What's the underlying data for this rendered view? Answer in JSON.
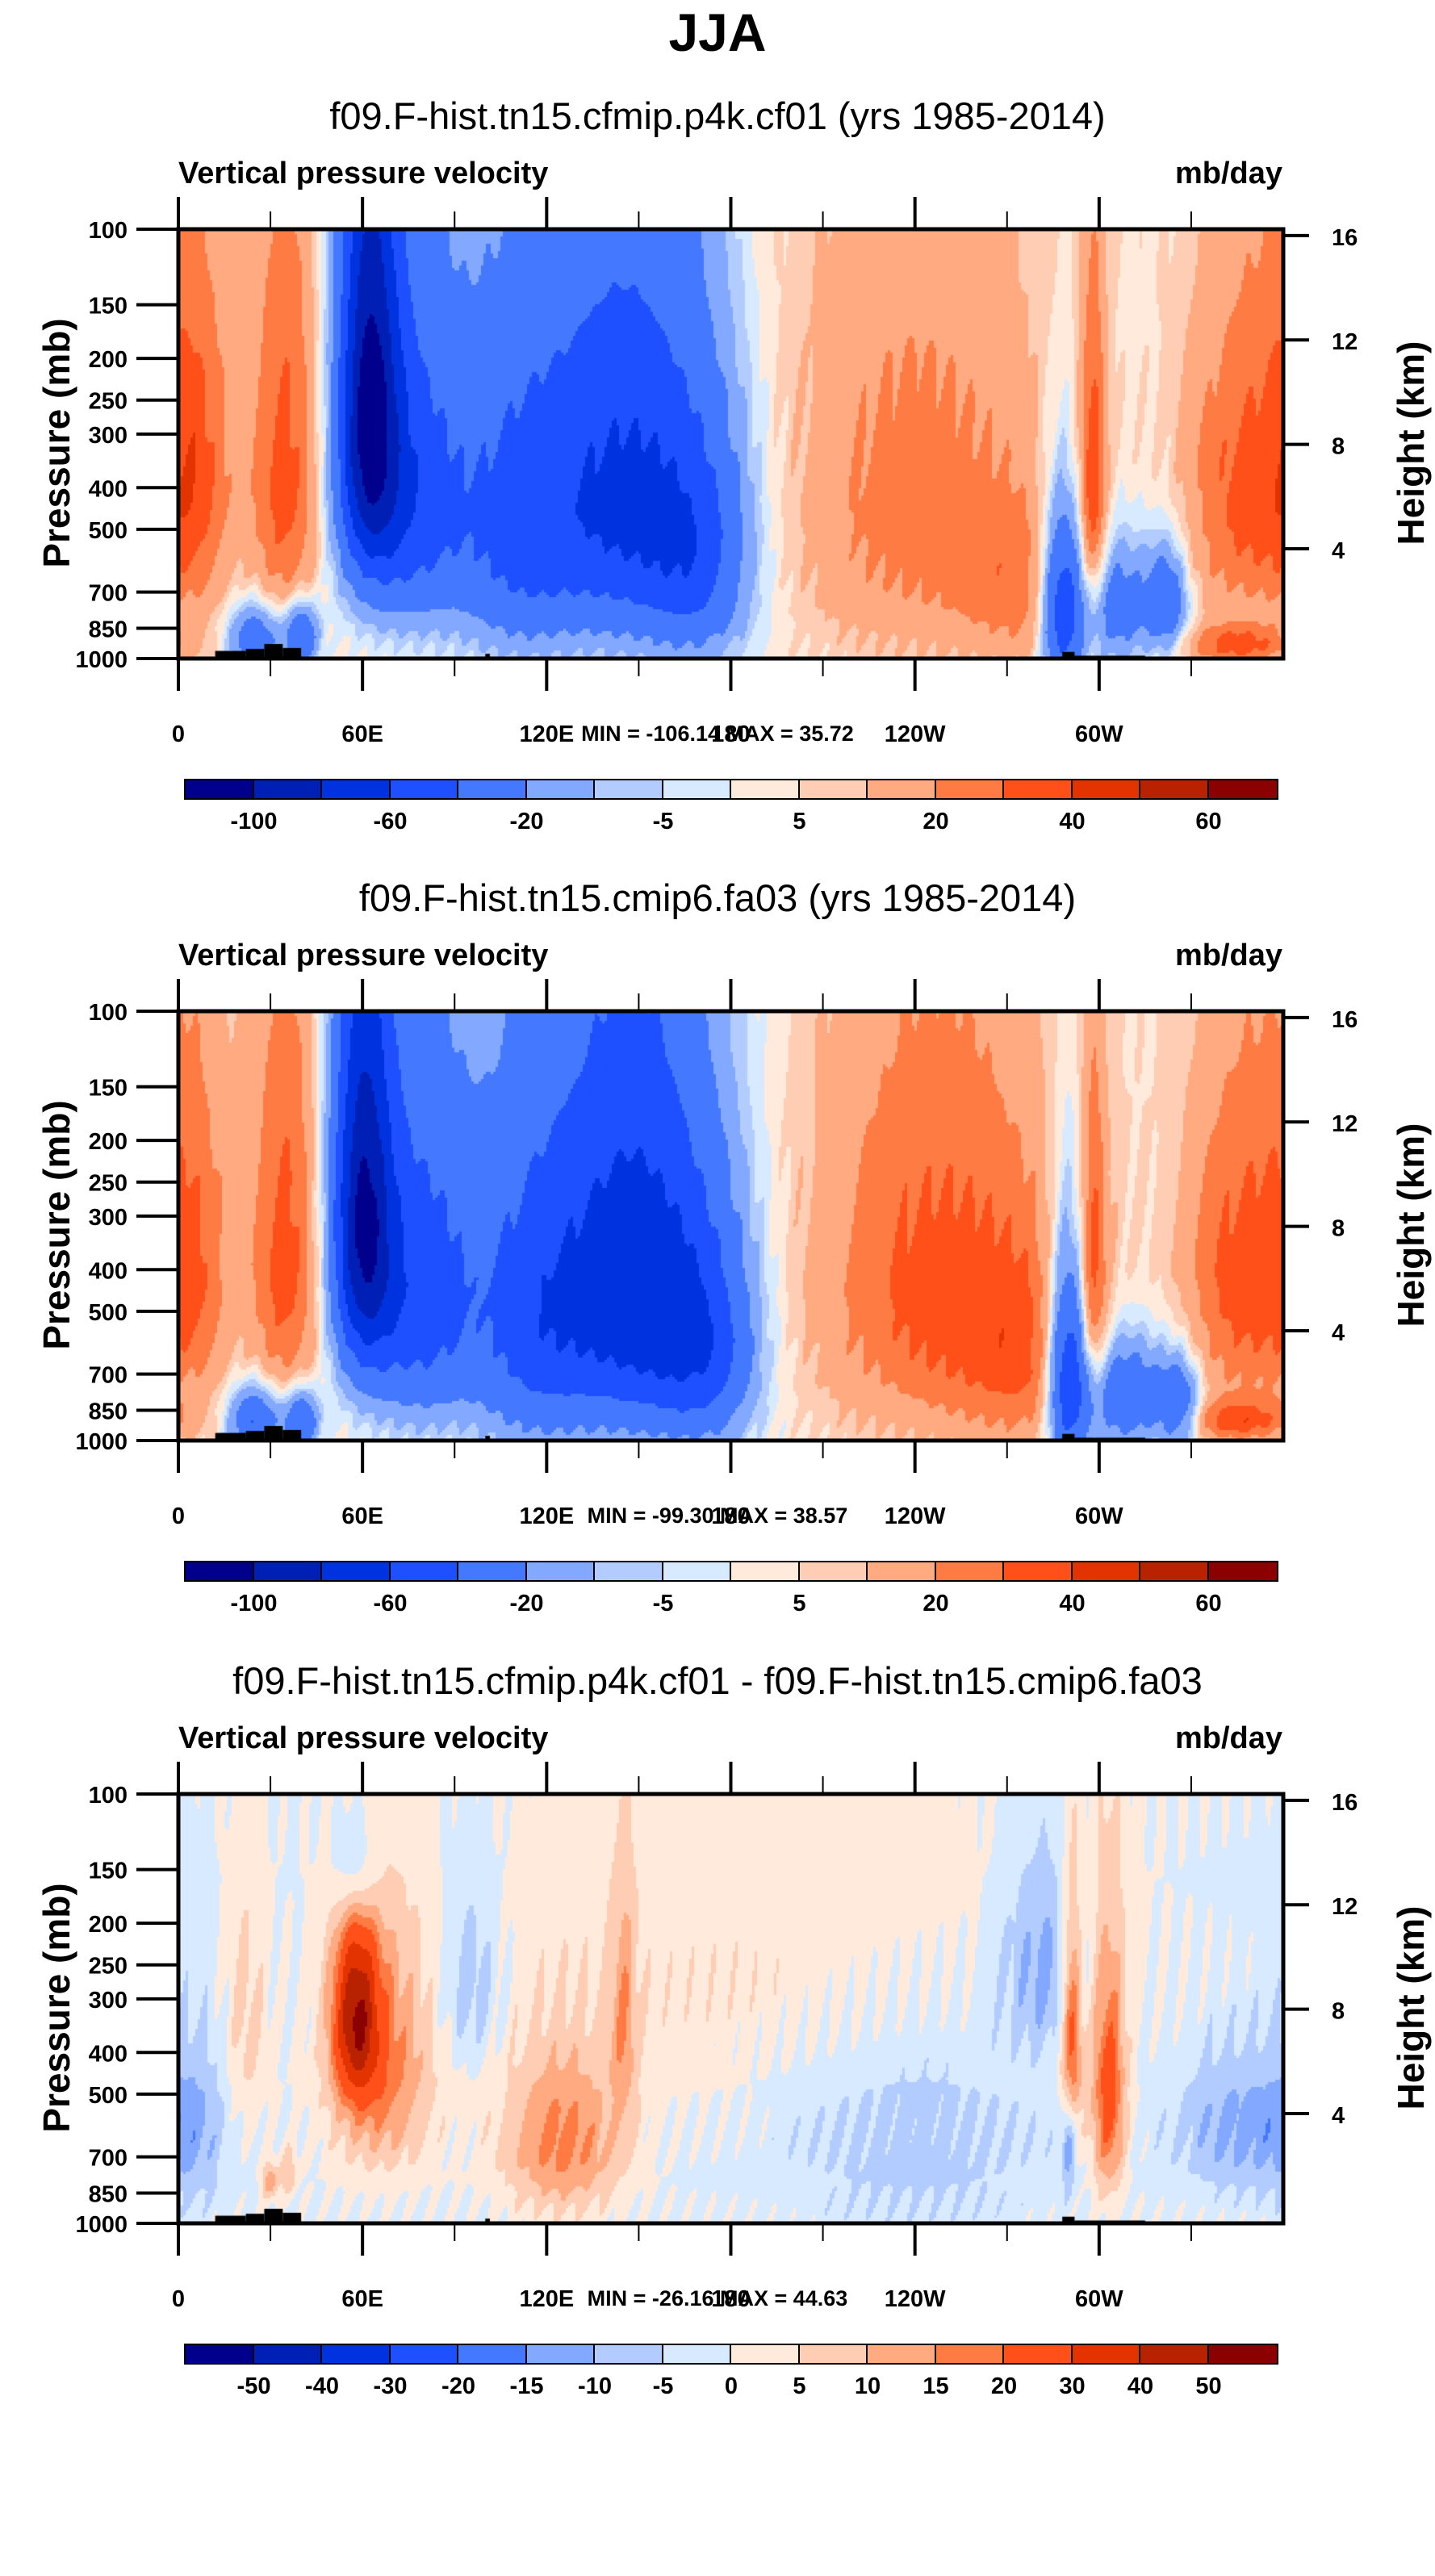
{
  "main_title": "JJA",
  "chart_data": [
    {
      "type": "heatmap",
      "subtype": "filled-contour pressure-longitude cross-section",
      "title": "f09.F-hist.tn15.cfmip.p4k.cf01 (yrs 1985-2014)",
      "left_string": "Vertical pressure velocity",
      "right_string": "mb/day",
      "xlabel": "",
      "ylabel": "Pressure (mb)",
      "y2label": "Height (km)",
      "x_ticks": [
        "0",
        "60E",
        "120E",
        "180",
        "120W",
        "60W"
      ],
      "x_range_deg": [
        0,
        360
      ],
      "y_ticks": [
        "100",
        "150",
        "200",
        "250",
        "300",
        "400",
        "500",
        "700",
        "850",
        "1000"
      ],
      "y_range_mb": [
        100,
        1000
      ],
      "y2_ticks": [
        "16",
        "12",
        "8",
        "4"
      ],
      "minmax_label": "MIN = -106.14  MAX =  35.72",
      "min": -106.14,
      "max": 35.72,
      "colorbar": {
        "levels": [
          -100,
          -80,
          -60,
          -40,
          -20,
          -10,
          -5,
          0,
          5,
          10,
          20,
          30,
          40,
          50,
          60
        ],
        "labels": [
          "-100",
          "-60",
          "-20",
          "-5",
          "5",
          "20",
          "40",
          "60"
        ],
        "label_every": 2,
        "colors": [
          "#00008c",
          "#001fb4",
          "#0033e0",
          "#1e50ff",
          "#4479ff",
          "#82a8ff",
          "#b3ccff",
          "#d8eaff",
          "#ffeadb",
          "#ffcdb3",
          "#ffaa80",
          "#ff7b44",
          "#ff5019",
          "#e33300",
          "#b82200",
          "#8b0000"
        ]
      },
      "features": [
        {
          "lon": 62,
          "p": 260,
          "amp": -90,
          "sx": 7,
          "sy": 220
        },
        {
          "lon": 75,
          "p": 420,
          "amp": -55,
          "sx": 14,
          "sy": 260
        },
        {
          "lon": 145,
          "p": 420,
          "amp": -65,
          "sx": 20,
          "sy": 300
        },
        {
          "lon": 110,
          "p": 500,
          "amp": -40,
          "sx": 14,
          "sy": 300
        },
        {
          "lon": 170,
          "p": 600,
          "amp": -35,
          "sx": 12,
          "sy": 260
        },
        {
          "lon": 5,
          "p": 380,
          "amp": 30,
          "sx": 9,
          "sy": 260
        },
        {
          "lon": 35,
          "p": 380,
          "amp": 32,
          "sx": 8,
          "sy": 300
        },
        {
          "lon": 240,
          "p": 430,
          "amp": 22,
          "sx": 28,
          "sy": 330
        },
        {
          "lon": 345,
          "p": 420,
          "amp": 28,
          "sx": 12,
          "sy": 250
        },
        {
          "lon": 280,
          "p": 700,
          "amp": 18,
          "sx": 18,
          "sy": 220
        },
        {
          "lon": 288,
          "p": 750,
          "amp": -70,
          "sx": 5,
          "sy": 250
        },
        {
          "lon": 305,
          "p": 750,
          "amp": -40,
          "sx": 8,
          "sy": 180
        },
        {
          "lon": 322,
          "p": 740,
          "amp": -40,
          "sx": 5,
          "sy": 150
        },
        {
          "lon": 298,
          "p": 420,
          "amp": 35,
          "sx": 3,
          "sy": 250
        },
        {
          "lon": 345,
          "p": 930,
          "amp": 30,
          "sx": 12,
          "sy": 70
        },
        {
          "lon": 25,
          "p": 900,
          "amp": -40,
          "sx": 6,
          "sy": 120
        },
        {
          "lon": 40,
          "p": 880,
          "amp": -45,
          "sx": 4,
          "sy": 110
        }
      ],
      "base": 3
    },
    {
      "type": "heatmap",
      "subtype": "filled-contour pressure-longitude cross-section",
      "title": "f09.F-hist.tn15.cmip6.fa03 (yrs 1985-2014)",
      "left_string": "Vertical pressure velocity",
      "right_string": "mb/day",
      "xlabel": "",
      "ylabel": "Pressure (mb)",
      "y2label": "Height (km)",
      "x_ticks": [
        "0",
        "60E",
        "120E",
        "180",
        "120W",
        "60W"
      ],
      "x_range_deg": [
        0,
        360
      ],
      "y_ticks": [
        "100",
        "150",
        "200",
        "250",
        "300",
        "400",
        "500",
        "700",
        "850",
        "1000"
      ],
      "y_range_mb": [
        100,
        1000
      ],
      "y2_ticks": [
        "16",
        "12",
        "8",
        "4"
      ],
      "minmax_label": "MIN = -99.30  MAX =  38.57",
      "min": -99.3,
      "max": 38.57,
      "colorbar": {
        "levels": [
          -100,
          -80,
          -60,
          -40,
          -20,
          -10,
          -5,
          0,
          5,
          10,
          20,
          30,
          40,
          50,
          60
        ],
        "labels": [
          "-100",
          "-60",
          "-20",
          "-5",
          "5",
          "20",
          "40",
          "60"
        ],
        "label_every": 2,
        "colors": [
          "#00008c",
          "#001fb4",
          "#0033e0",
          "#1e50ff",
          "#4479ff",
          "#82a8ff",
          "#b3ccff",
          "#d8eaff",
          "#ffeadb",
          "#ffcdb3",
          "#ffaa80",
          "#ff7b44",
          "#ff5019",
          "#e33300",
          "#b82200",
          "#8b0000"
        ]
      },
      "features": [
        {
          "lon": 60,
          "p": 300,
          "amp": -90,
          "sx": 7,
          "sy": 230
        },
        {
          "lon": 78,
          "p": 450,
          "amp": -55,
          "sx": 14,
          "sy": 280
        },
        {
          "lon": 148,
          "p": 430,
          "amp": -75,
          "sx": 18,
          "sy": 320
        },
        {
          "lon": 115,
          "p": 520,
          "amp": -45,
          "sx": 14,
          "sy": 320
        },
        {
          "lon": 172,
          "p": 620,
          "amp": -40,
          "sx": 12,
          "sy": 260
        },
        {
          "lon": 5,
          "p": 400,
          "amp": 25,
          "sx": 9,
          "sy": 260
        },
        {
          "lon": 35,
          "p": 380,
          "amp": 32,
          "sx": 8,
          "sy": 300
        },
        {
          "lon": 245,
          "p": 430,
          "amp": 30,
          "sx": 26,
          "sy": 320
        },
        {
          "lon": 345,
          "p": 420,
          "amp": 30,
          "sx": 12,
          "sy": 260
        },
        {
          "lon": 280,
          "p": 650,
          "amp": 22,
          "sx": 18,
          "sy": 260
        },
        {
          "lon": 290,
          "p": 700,
          "amp": -75,
          "sx": 5,
          "sy": 280
        },
        {
          "lon": 308,
          "p": 780,
          "amp": -45,
          "sx": 9,
          "sy": 170
        },
        {
          "lon": 326,
          "p": 820,
          "amp": -40,
          "sx": 5,
          "sy": 140
        },
        {
          "lon": 298,
          "p": 420,
          "amp": 30,
          "sx": 3,
          "sy": 250
        },
        {
          "lon": 345,
          "p": 900,
          "amp": 30,
          "sx": 12,
          "sy": 70
        },
        {
          "lon": 25,
          "p": 900,
          "amp": -45,
          "sx": 6,
          "sy": 120
        },
        {
          "lon": 40,
          "p": 900,
          "amp": -45,
          "sx": 4,
          "sy": 110
        }
      ],
      "base": 3
    },
    {
      "type": "heatmap",
      "subtype": "filled-contour pressure-longitude cross-section (difference)",
      "title": "f09.F-hist.tn15.cfmip.p4k.cf01 - f09.F-hist.tn15.cmip6.fa03",
      "left_string": "Vertical pressure velocity",
      "right_string": "mb/day",
      "xlabel": "",
      "ylabel": "Pressure (mb)",
      "y2label": "Height (km)",
      "x_ticks": [
        "0",
        "60E",
        "120E",
        "180",
        "120W",
        "60W"
      ],
      "x_range_deg": [
        0,
        360
      ],
      "y_ticks": [
        "100",
        "150",
        "200",
        "250",
        "300",
        "400",
        "500",
        "700",
        "850",
        "1000"
      ],
      "y_range_mb": [
        100,
        1000
      ],
      "y2_ticks": [
        "16",
        "12",
        "8",
        "4"
      ],
      "minmax_label": "MIN = -26.16  MAX =  44.63",
      "min": -26.16,
      "max": 44.63,
      "colorbar": {
        "levels": [
          -50,
          -40,
          -30,
          -20,
          -15,
          -10,
          -5,
          0,
          5,
          10,
          15,
          20,
          30,
          40,
          50
        ],
        "labels": [
          "-50",
          "-40",
          "-30",
          "-20",
          "-15",
          "-10",
          "-5",
          "0",
          "5",
          "10",
          "15",
          "20",
          "30",
          "40",
          "50"
        ],
        "label_every": 1,
        "colors": [
          "#00008c",
          "#001fb4",
          "#0033e0",
          "#1e50ff",
          "#4479ff",
          "#82a8ff",
          "#b3ccff",
          "#d8eaff",
          "#ffeadb",
          "#ffcdb3",
          "#ffaa80",
          "#ff7b44",
          "#ff5019",
          "#e33300",
          "#b82200",
          "#8b0000"
        ]
      },
      "features": [
        {
          "lon": 58,
          "p": 330,
          "amp": 42,
          "sx": 5,
          "sy": 110
        },
        {
          "lon": 66,
          "p": 450,
          "amp": 18,
          "sx": 12,
          "sy": 200
        },
        {
          "lon": 58,
          "p": 150,
          "amp": -16,
          "sx": 5,
          "sy": 40
        },
        {
          "lon": 125,
          "p": 650,
          "amp": 18,
          "sx": 14,
          "sy": 200
        },
        {
          "lon": 145,
          "p": 340,
          "amp": 12,
          "sx": 3,
          "sy": 150
        },
        {
          "lon": 95,
          "p": 280,
          "amp": -9,
          "sx": 7,
          "sy": 100
        },
        {
          "lon": 22,
          "p": 350,
          "amp": 8,
          "sx": 5,
          "sy": 180
        },
        {
          "lon": 30,
          "p": 800,
          "amp": 14,
          "sx": 2,
          "sy": 60
        },
        {
          "lon": 36,
          "p": 760,
          "amp": 10,
          "sx": 2,
          "sy": 70
        },
        {
          "lon": 291,
          "p": 370,
          "amp": 25,
          "sx": 2.5,
          "sy": 160
        },
        {
          "lon": 303,
          "p": 500,
          "amp": 25,
          "sx": 4,
          "sy": 230
        },
        {
          "lon": 282,
          "p": 250,
          "amp": -12,
          "sx": 10,
          "sy": 100
        },
        {
          "lon": 290,
          "p": 640,
          "amp": -14,
          "sx": 1.5,
          "sy": 120
        },
        {
          "lon": 345,
          "p": 600,
          "amp": -11,
          "sx": 14,
          "sy": 160
        },
        {
          "lon": 240,
          "p": 600,
          "amp": -7,
          "sx": 30,
          "sy": 250
        },
        {
          "lon": 5,
          "p": 600,
          "amp": -8,
          "sx": 8,
          "sy": 200
        },
        {
          "lon": 200,
          "p": 220,
          "amp": 5,
          "sx": 70,
          "sy": 200
        }
      ],
      "base": -1
    }
  ]
}
